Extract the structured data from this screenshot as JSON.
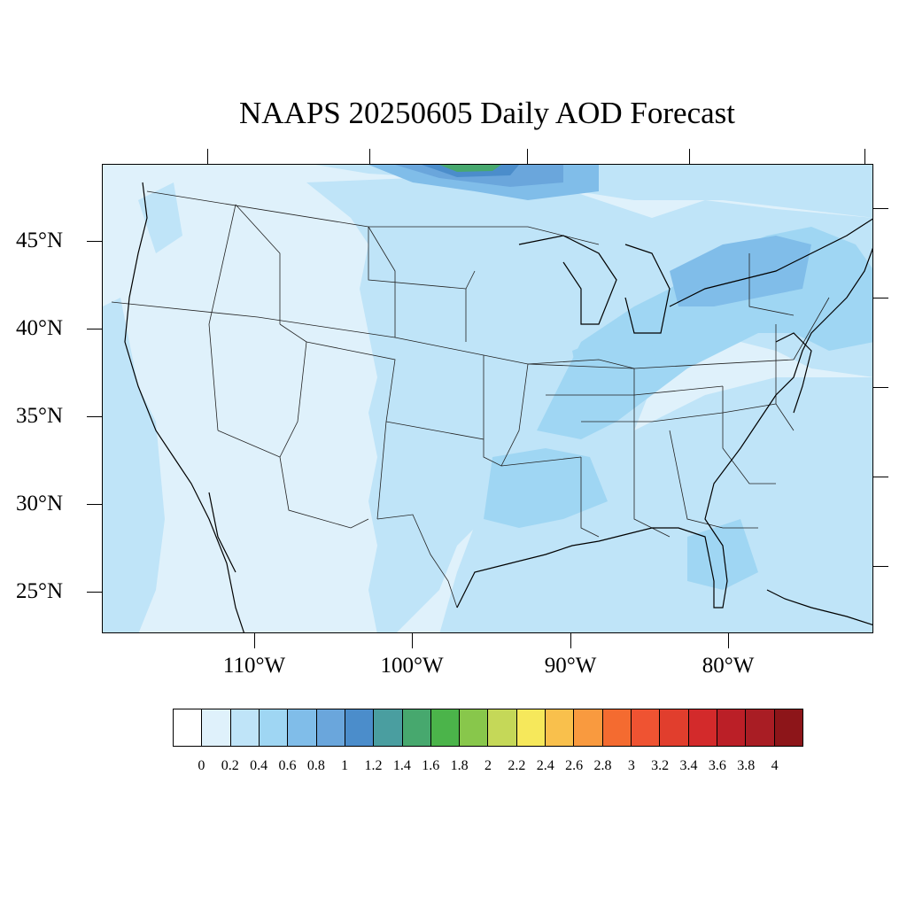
{
  "title": "NAAPS 20250605 Daily AOD Forecast",
  "map": {
    "lat_labels": [
      "45°N",
      "40°N",
      "35°N",
      "30°N",
      "25°N"
    ],
    "lon_labels": [
      "110°W",
      "100°W",
      "90°W",
      "80°W"
    ]
  },
  "colorbar": {
    "labels": [
      "0",
      "0.2",
      "0.4",
      "0.6",
      "0.8",
      "1",
      "1.2",
      "1.4",
      "1.6",
      "1.8",
      "2",
      "2.2",
      "2.4",
      "2.6",
      "2.8",
      "3",
      "3.2",
      "3.4",
      "3.6",
      "3.8",
      "4"
    ],
    "colors": [
      "#ffffff",
      "#dff1fb",
      "#bfe4f8",
      "#9fd6f3",
      "#80bde9",
      "#6aa6dc",
      "#4b8dcb",
      "#4a9ea0",
      "#47a86e",
      "#4bb44a",
      "#88c74b",
      "#c5d858",
      "#f6e85b",
      "#f9c04c",
      "#f99a3f",
      "#f46b30",
      "#ef5332",
      "#e13e2d",
      "#d32a2b",
      "#bb1f27",
      "#a91d24",
      "#8d1519"
    ]
  }
}
